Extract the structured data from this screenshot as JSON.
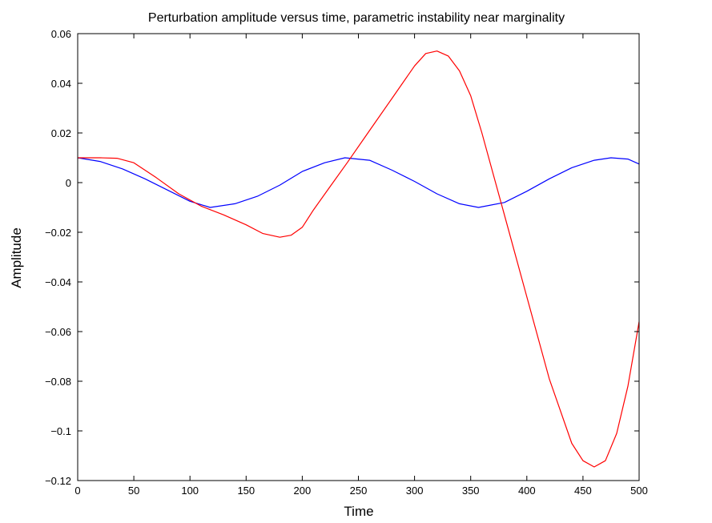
{
  "chart_data": {
    "type": "line",
    "title": "Perturbation amplitude versus time, parametric instability near marginality",
    "xlabel": "Time",
    "ylabel": "Amplitude",
    "xlim": [
      0,
      500
    ],
    "ylim": [
      -0.12,
      0.06
    ],
    "xticks": [
      0,
      50,
      100,
      150,
      200,
      250,
      300,
      350,
      400,
      450,
      500
    ],
    "yticks": [
      0.06,
      0.04,
      0.02,
      0,
      -0.02,
      -0.04,
      -0.06,
      -0.08,
      -0.1,
      -0.12
    ],
    "xtick_labels": [
      "0",
      "50",
      "100",
      "150",
      "200",
      "250",
      "300",
      "350",
      "400",
      "450",
      "500"
    ],
    "ytick_labels": [
      "0.06",
      "0.04",
      "0.02",
      "0",
      "−0.02",
      "−0.04",
      "−0.06",
      "−0.08",
      "−0.1",
      "−0.12"
    ],
    "grid": false,
    "series": [
      {
        "color": "#0000ff",
        "x": [
          0,
          20,
          40,
          60,
          80,
          100,
          118,
          140,
          160,
          180,
          200,
          220,
          238,
          260,
          280,
          300,
          320,
          340,
          357,
          380,
          400,
          420,
          440,
          460,
          475,
          490,
          500
        ],
        "y": [
          0.01,
          0.0085,
          0.0055,
          0.0015,
          -0.003,
          -0.0075,
          -0.01,
          -0.0085,
          -0.0055,
          -0.001,
          0.0045,
          0.008,
          0.01,
          0.009,
          0.005,
          0.0005,
          -0.0045,
          -0.0085,
          -0.01,
          -0.008,
          -0.0035,
          0.0015,
          0.006,
          0.009,
          0.01,
          0.0095,
          0.0075
        ]
      },
      {
        "color": "#ff0000",
        "x": [
          0,
          20,
          35,
          50,
          70,
          90,
          110,
          130,
          150,
          165,
          180,
          190,
          200,
          210,
          225,
          240,
          260,
          280,
          300,
          310,
          320,
          330,
          340,
          350,
          360,
          380,
          400,
          420,
          440,
          450,
          460,
          470,
          480,
          490,
          500
        ],
        "y": [
          0.01,
          0.01,
          0.0098,
          0.008,
          0.002,
          -0.0045,
          -0.0095,
          -0.013,
          -0.017,
          -0.0205,
          -0.022,
          -0.0212,
          -0.018,
          -0.011,
          -0.0015,
          0.008,
          0.021,
          0.034,
          0.047,
          0.052,
          0.053,
          0.051,
          0.045,
          0.035,
          0.02,
          -0.013,
          -0.046,
          -0.079,
          -0.105,
          -0.112,
          -0.1145,
          -0.112,
          -0.101,
          -0.082,
          -0.056
        ]
      }
    ]
  }
}
